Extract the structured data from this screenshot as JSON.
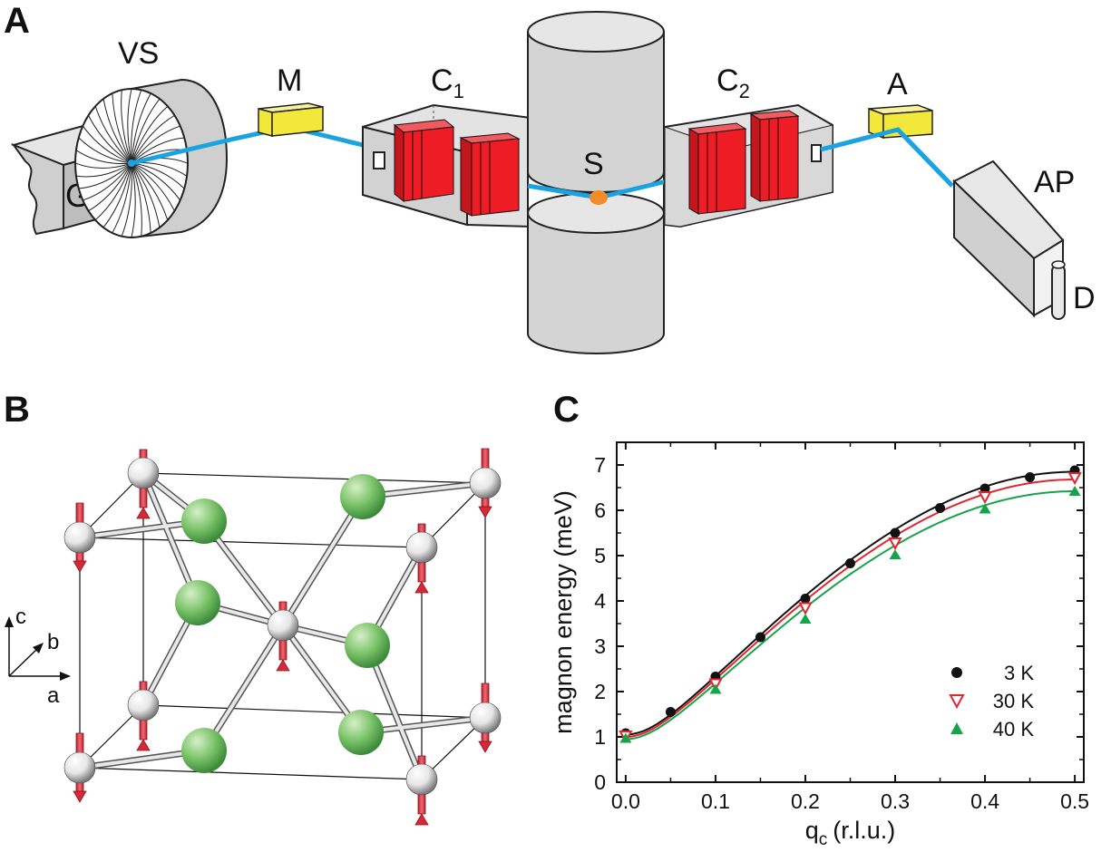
{
  "panels": {
    "a": "A",
    "b": "B",
    "c": "C"
  },
  "instrument": {
    "labels": {
      "G": "G",
      "VS": "VS",
      "M": "M",
      "C1": "C",
      "C1_sub": "1",
      "S": "S",
      "C2": "C",
      "C2_sub": "2",
      "A": "A",
      "AP": "AP",
      "D": "D"
    },
    "colors": {
      "beam": "#1aa3e0",
      "crystal": "#f2e83a",
      "collimator_blades": "#ee1c24",
      "sample": "#f28c28",
      "housing": "#d9d9d9"
    }
  },
  "lattice": {
    "axes": {
      "c": "c",
      "b": "b",
      "a": "a"
    },
    "colors": {
      "magnetic_ion": "#e8e8e8",
      "ligand": "#6dbb5a",
      "spin_arrow": "#e0394a"
    }
  },
  "chart_data": {
    "type": "scatter",
    "title": "",
    "xlabel": "q",
    "xlabel_sub": "c",
    "xlabel_unit": "(r.l.u.)",
    "ylabel": "magnon energy (meV)",
    "xlim": [
      -0.01,
      0.51
    ],
    "ylim": [
      0,
      7.5
    ],
    "xticks": [
      "0.0",
      "0.1",
      "0.2",
      "0.3",
      "0.4",
      "0.5"
    ],
    "yticks": [
      "0",
      "1",
      "2",
      "3",
      "4",
      "5",
      "6",
      "7"
    ],
    "grid": false,
    "legend_position": "bottom-right",
    "series": [
      {
        "name": "3 K",
        "marker": "filled-circle",
        "color": "#111111",
        "x": [
          0.0,
          0.05,
          0.1,
          0.15,
          0.2,
          0.25,
          0.3,
          0.35,
          0.4,
          0.45,
          0.5
        ],
        "y": [
          1.08,
          1.55,
          2.33,
          3.2,
          4.05,
          4.83,
          5.5,
          6.05,
          6.48,
          6.73,
          6.88
        ],
        "fit": {
          "E0": 1.05,
          "Emax": 6.85
        }
      },
      {
        "name": "30 K",
        "marker": "open-triangle-down",
        "color": "#e0262e",
        "x": [
          0.0,
          0.1,
          0.2,
          0.3,
          0.4,
          0.5
        ],
        "y": [
          1.02,
          2.17,
          3.85,
          5.28,
          6.3,
          6.72
        ],
        "fit": {
          "E0": 1.0,
          "Emax": 6.68
        }
      },
      {
        "name": "40 K",
        "marker": "filled-triangle-up",
        "color": "#16a34a",
        "x": [
          0.0,
          0.1,
          0.2,
          0.3,
          0.4,
          0.5
        ],
        "y": [
          0.97,
          2.05,
          3.6,
          5.02,
          6.03,
          6.42
        ],
        "fit": {
          "E0": 0.95,
          "Emax": 6.42
        }
      }
    ]
  }
}
